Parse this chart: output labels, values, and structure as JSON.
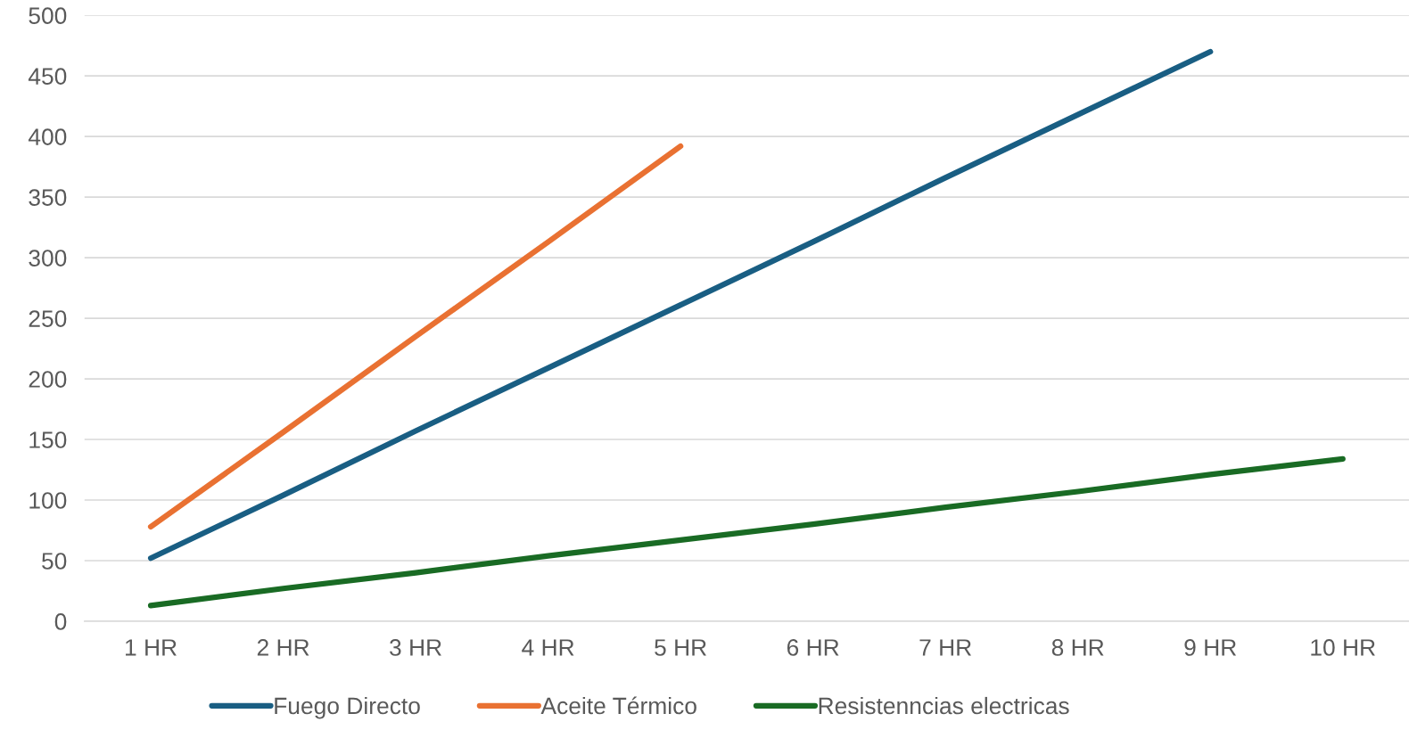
{
  "chart_data": {
    "type": "line",
    "categories": [
      "1 HR",
      "2 HR",
      "3 HR",
      "4 HR",
      "5 HR",
      "6 HR",
      "7 HR",
      "8 HR",
      "9 HR",
      "10 HR"
    ],
    "series": [
      {
        "name": "Fuego Directo",
        "color": "#195e83",
        "values": [
          52,
          104,
          157,
          209,
          261,
          313,
          366,
          418,
          470,
          null
        ]
      },
      {
        "name": "Aceite Térmico",
        "color": "#e97132",
        "values": [
          78,
          156,
          235,
          313,
          392,
          null,
          null,
          null,
          null,
          null
        ]
      },
      {
        "name": "Resistenncias electricas",
        "color": "#196b24",
        "values": [
          13,
          27,
          40,
          54,
          67,
          80,
          94,
          107,
          121,
          134
        ]
      }
    ],
    "ylim": [
      0,
      500
    ],
    "yticks": [
      0,
      50,
      100,
      150,
      200,
      250,
      300,
      350,
      400,
      450,
      500
    ],
    "grid": "y",
    "legend": "bottom",
    "marker": "none",
    "line_style": "solid"
  }
}
